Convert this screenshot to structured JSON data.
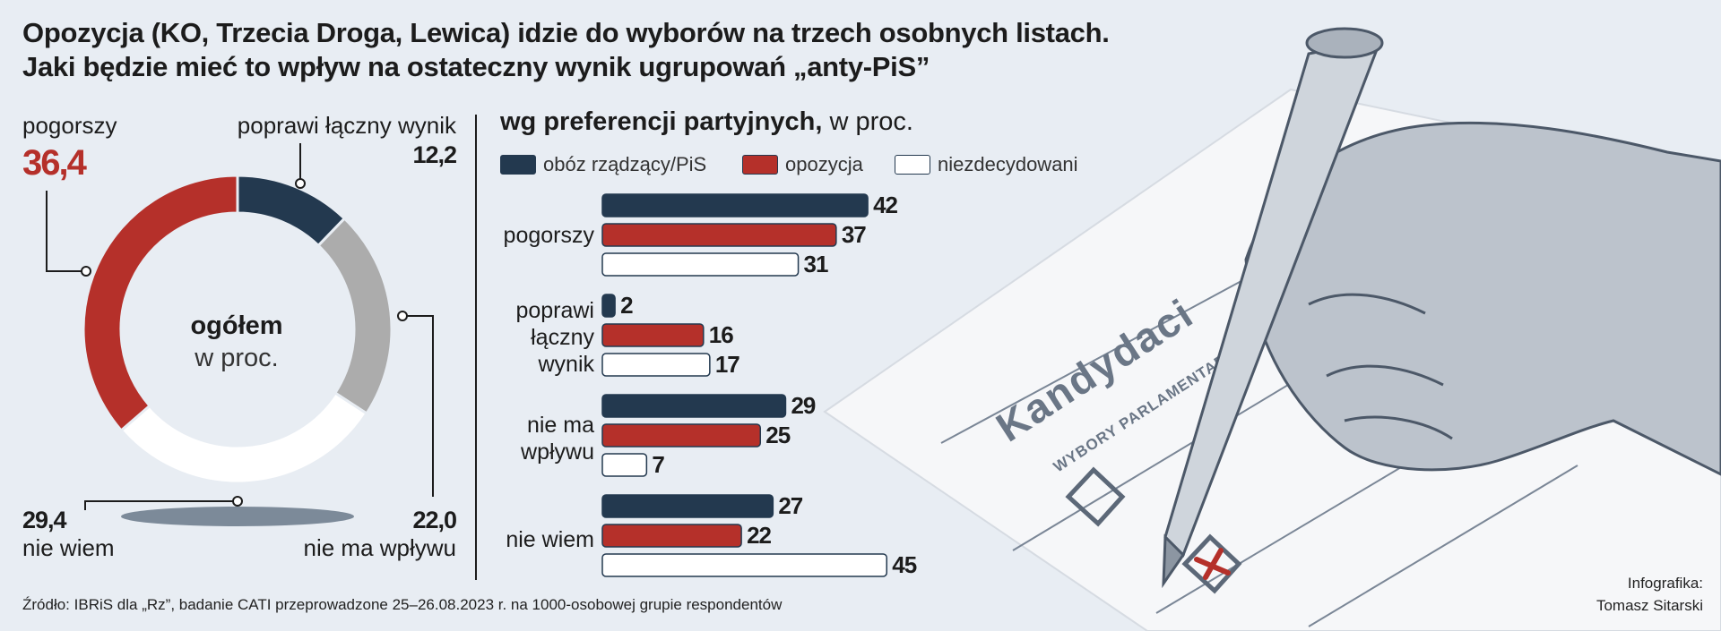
{
  "title_line1": "Opozycja (KO, Trzecia Droga, Lewica) idzie do wyborów na trzech osobnych listach.",
  "title_line2": "Jaki będzie mieć to wpływ na ostateczny wynik ugrupowań „anty-PiS”",
  "donut": {
    "center_bold": "ogółem",
    "center_sub": "w proc.",
    "labels": {
      "pogorszy": "pogorszy",
      "pogorszy_value": "36,4",
      "poprawi": "poprawi łączny wynik",
      "poprawi_value": "12,2",
      "nie_ma": "nie ma wpływu",
      "nie_ma_value": "22,0",
      "nie_wiem": "nie wiem",
      "nie_wiem_value": "29,4"
    }
  },
  "bars_header": {
    "bold": "wg preferencji partyjnych,",
    "normal": " w proc."
  },
  "legend": [
    "obóz rządzący/PiS",
    "opozycja",
    "niezdecydowani"
  ],
  "colors": {
    "navy": "#23394f",
    "red": "#b5302a",
    "white": "#ffffff",
    "gray": "#acacac",
    "background": "#e8edf3"
  },
  "bar_categories": [
    "pogorszy",
    "poprawi łączny wynik",
    "nie ma wpływu",
    "nie wiem"
  ],
  "source": "Źródło: IBRiS dla „Rz”, badanie CATI przeprowadzone 25–26.08.2023 r. na 1000-osobowej grupie respondentów",
  "credit_line1": "Infografika:",
  "credit_line2": "Tomasz Sitarski",
  "ballot": {
    "heading": "Kandydaci",
    "subheading": "WYBORY PARLAMENTARNE 2023"
  },
  "chart_data": [
    {
      "type": "pie",
      "categories": [
        "poprawi łączny wynik",
        "nie ma wpływu",
        "nie wiem",
        "pogorszy"
      ],
      "values": [
        12.2,
        22.0,
        29.4,
        36.4
      ],
      "colors": [
        "#23394f",
        "#acacac",
        "#ffffff",
        "#b5302a"
      ]
    },
    {
      "type": "bar",
      "orientation": "horizontal",
      "categories": [
        "pogorszy",
        "poprawi łączny wynik",
        "nie ma wpływu",
        "nie wiem"
      ],
      "series": [
        {
          "name": "obóz rządzący/PiS",
          "values": [
            42,
            2,
            29,
            27
          ],
          "color": "#23394f"
        },
        {
          "name": "opozycja",
          "values": [
            37,
            16,
            25,
            22
          ],
          "color": "#b5302a"
        },
        {
          "name": "niezdecydowani",
          "values": [
            31,
            17,
            7,
            45
          ],
          "color": "#ffffff"
        }
      ]
    }
  ]
}
